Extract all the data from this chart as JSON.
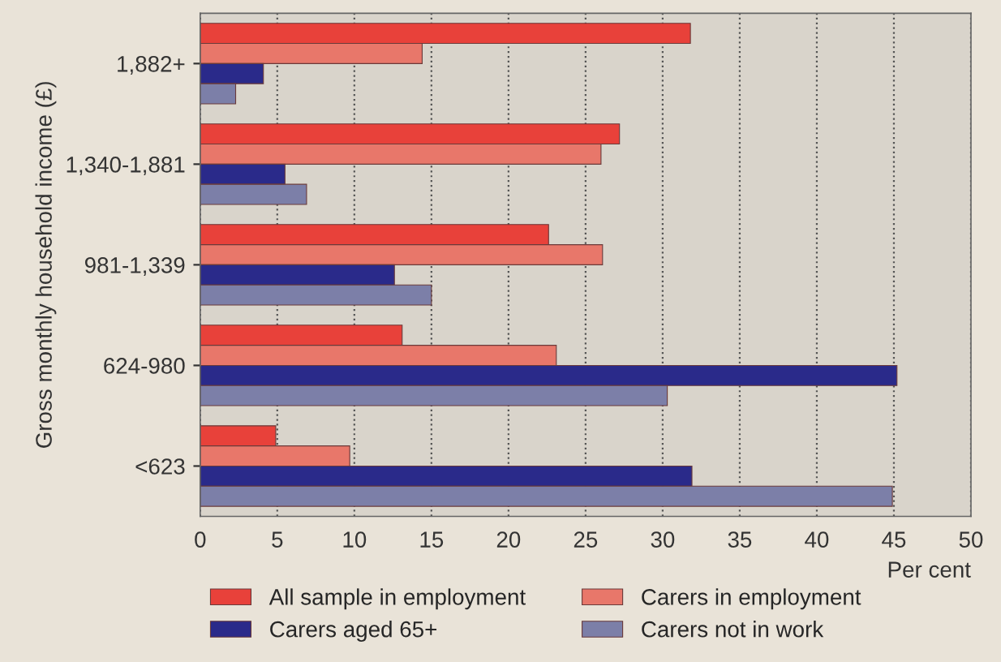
{
  "chart_data": {
    "type": "bar",
    "orientation": "horizontal",
    "xlabel": "Per cent",
    "ylabel": "Gross monthly household income (£)",
    "categories": [
      "1,882+",
      "1,340-1,881",
      "981-1,339",
      "624-980",
      "<623"
    ],
    "series": [
      {
        "name": "All sample in employment",
        "color": "#e8413a",
        "values": [
          31.8,
          27.2,
          22.6,
          13.1,
          4.9
        ]
      },
      {
        "name": "Carers in employment",
        "color": "#e8776a",
        "values": [
          14.4,
          26.0,
          26.1,
          23.1,
          9.7
        ]
      },
      {
        "name": "Carers aged 65+",
        "color": "#2a2a8a",
        "values": [
          4.1,
          5.5,
          12.6,
          45.2,
          31.9
        ]
      },
      {
        "name": "Carers not in work",
        "color": "#7c7fa8",
        "values": [
          2.3,
          6.9,
          15.0,
          30.3,
          44.9
        ]
      }
    ],
    "xlim": [
      0,
      50
    ],
    "xticks": [
      0,
      5,
      10,
      15,
      20,
      25,
      30,
      35,
      40,
      45,
      50
    ],
    "grid": "x",
    "legend": "bottom"
  }
}
